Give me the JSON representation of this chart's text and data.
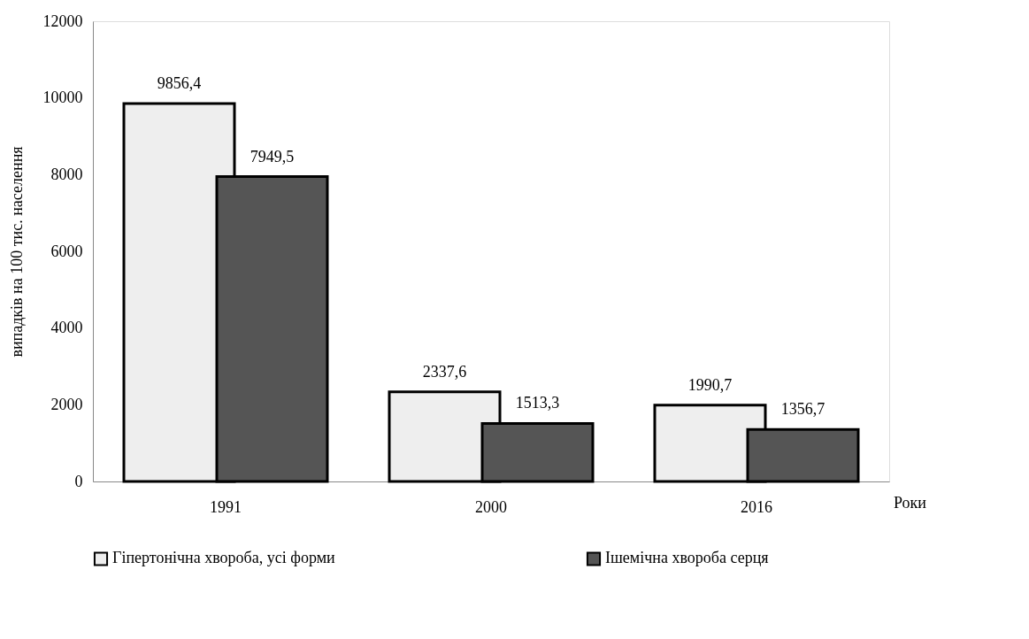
{
  "chart_data": {
    "type": "bar",
    "xlabel": "Роки",
    "ylabel": "випадків на 100 тис. населення",
    "categories": [
      "1991",
      "2000",
      "2016"
    ],
    "series": [
      {
        "name": "Гіпертонічна хвороба, усі форми",
        "color": "#eeeeee",
        "values": [
          9856.4,
          2337.6,
          1990.7
        ],
        "value_labels": [
          "9856,4",
          "2337,6",
          "1990,7"
        ]
      },
      {
        "name": "Ішемічна хвороба серця",
        "color": "#555555",
        "values": [
          7949.5,
          1513.3,
          1356.7
        ],
        "value_labels": [
          "7949,5",
          "1513,3",
          "1356,7"
        ]
      }
    ],
    "ylim": [
      0,
      12000
    ],
    "yticks": [
      0,
      2000,
      4000,
      6000,
      8000,
      10000,
      12000
    ],
    "grid": false,
    "legend": "bottom"
  }
}
